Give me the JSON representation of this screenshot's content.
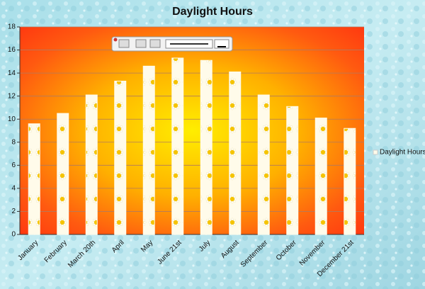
{
  "chart_data": {
    "type": "bar",
    "title": "Daylight Hours",
    "categories": [
      "January",
      "February",
      "March 20th",
      "April",
      "May",
      "June 21st",
      "July",
      "August",
      "September",
      "October",
      "November",
      "December 21st"
    ],
    "series": [
      {
        "name": "Daylight Hours",
        "color": "#fffbea",
        "values": [
          9.6,
          10.5,
          12.1,
          13.3,
          14.6,
          15.3,
          15.1,
          14.1,
          12.1,
          11.1,
          10.1,
          9.2
        ]
      }
    ],
    "ylim": [
      0,
      18
    ],
    "yticks": [
      0,
      2,
      4,
      6,
      8,
      10,
      12,
      14,
      16,
      18
    ],
    "grid": true,
    "legend": "right"
  }
}
